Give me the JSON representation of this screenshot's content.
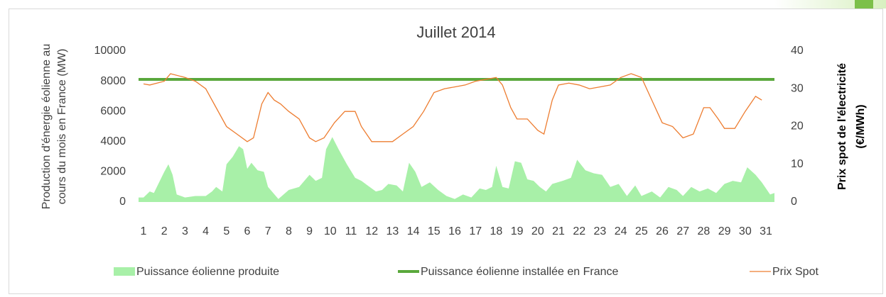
{
  "chart_data": {
    "type": "combo",
    "title": "Juillet 2014",
    "ylabel": [
      "Production d'énergie éolienne au",
      "cours du mois en France (MW)"
    ],
    "y2label": [
      "Prix spot de l'électricité",
      "(€/MWh)"
    ],
    "xlim": [
      0.76,
      31.41
    ],
    "xticks": [
      1,
      2,
      3,
      4,
      5,
      6,
      7,
      8,
      9,
      10,
      11,
      12,
      13,
      14,
      15,
      16,
      17,
      18,
      19,
      20,
      21,
      22,
      23,
      24,
      25,
      26,
      27,
      28,
      29,
      30,
      31
    ],
    "ylim": [
      0,
      10000
    ],
    "yticks": [
      0,
      2000,
      4000,
      6000,
      8000,
      10000
    ],
    "y2lim": [
      0,
      40
    ],
    "y2ticks": [
      0,
      10,
      20,
      30,
      40
    ],
    "legend": "bottom",
    "series": [
      {
        "name": "Puissance éolienne produite",
        "kind": "area",
        "color": "#a8f0a8",
        "x": [
          0.76,
          1,
          1.3,
          1.5,
          2,
          2.2,
          2.4,
          2.6,
          3,
          3.5,
          4,
          4.3,
          4.5,
          4.8,
          5,
          5.3,
          5.6,
          5.8,
          6,
          6.2,
          6.5,
          6.8,
          7,
          7.5,
          8,
          8.5,
          9,
          9.3,
          9.6,
          9.8,
          10.1,
          10.4,
          10.8,
          11.2,
          11.5,
          11.8,
          12.2,
          12.5,
          12.8,
          13.2,
          13.5,
          13.8,
          14.1,
          14.4,
          14.8,
          15.2,
          15.6,
          16,
          16.4,
          16.8,
          17.2,
          17.5,
          17.8,
          18,
          18.3,
          18.6,
          18.9,
          19.2,
          19.5,
          19.8,
          20.1,
          20.4,
          20.7,
          21.2,
          21.6,
          21.9,
          22.3,
          22.7,
          23.1,
          23.5,
          23.9,
          24.3,
          24.7,
          25,
          25.5,
          25.9,
          26.3,
          26.7,
          27,
          27.4,
          27.8,
          28.2,
          28.6,
          29,
          29.4,
          29.8,
          30.1,
          30.5,
          30.8,
          31.2,
          31.41
        ],
        "values": [
          300,
          300,
          700,
          600,
          2000,
          2500,
          1800,
          500,
          300,
          400,
          400,
          700,
          1000,
          700,
          2500,
          3000,
          3700,
          3500,
          2200,
          2600,
          2100,
          2000,
          1000,
          200,
          800,
          1000,
          1800,
          1400,
          1600,
          3500,
          4300,
          3500,
          2500,
          1600,
          1400,
          1100,
          700,
          800,
          1200,
          1100,
          700,
          2600,
          2000,
          1000,
          1300,
          800,
          400,
          200,
          500,
          300,
          900,
          800,
          1000,
          2400,
          1000,
          900,
          2700,
          2600,
          1500,
          1400,
          1000,
          700,
          1200,
          1400,
          1600,
          2800,
          2100,
          1900,
          1800,
          1000,
          1200,
          400,
          1100,
          400,
          700,
          300,
          1000,
          800,
          400,
          1000,
          700,
          900,
          600,
          1200,
          1400,
          1300,
          2300,
          1800,
          1300,
          500,
          600
        ]
      },
      {
        "name": "Puissance éolienne installée en France",
        "kind": "hline",
        "color": "#5aa83c",
        "value": 8120
      },
      {
        "name": "Prix Spot",
        "kind": "line",
        "axis": "y2",
        "color": "#ed7d31",
        "x": [
          1,
          1.3,
          2,
          2.3,
          3,
          3.5,
          4,
          4.5,
          5,
          5.5,
          6,
          6.3,
          6.7,
          7,
          7.3,
          7.6,
          8,
          8.5,
          9,
          9.3,
          9.7,
          10.2,
          10.7,
          11.2,
          11.5,
          12,
          12.5,
          13,
          13.5,
          14,
          14.5,
          15,
          15.5,
          16,
          16.5,
          17,
          17.5,
          18,
          18.3,
          18.7,
          19,
          19.5,
          20,
          20.3,
          20.7,
          21,
          21.5,
          22,
          22.5,
          23,
          23.5,
          24,
          24.5,
          25,
          25.5,
          26,
          26.5,
          27,
          27.5,
          28,
          28.3,
          28.7,
          29,
          29.5,
          30,
          30.5,
          30.8
        ],
        "values": [
          31.3,
          31,
          32,
          34,
          33,
          32,
          30,
          25,
          20,
          18,
          16,
          17,
          26,
          29,
          27,
          26,
          24,
          22,
          17,
          16,
          17,
          21,
          24,
          24,
          20,
          16,
          16,
          16,
          18,
          20,
          24,
          29,
          30,
          30.5,
          31,
          32,
          32.5,
          33,
          31,
          25,
          22,
          22,
          19,
          18,
          27,
          31,
          31.5,
          31,
          30,
          30.5,
          31,
          33,
          34,
          33,
          27,
          21,
          20,
          17,
          18,
          25,
          25,
          22,
          19.5,
          19.5,
          24,
          28,
          27
        ]
      }
    ]
  }
}
